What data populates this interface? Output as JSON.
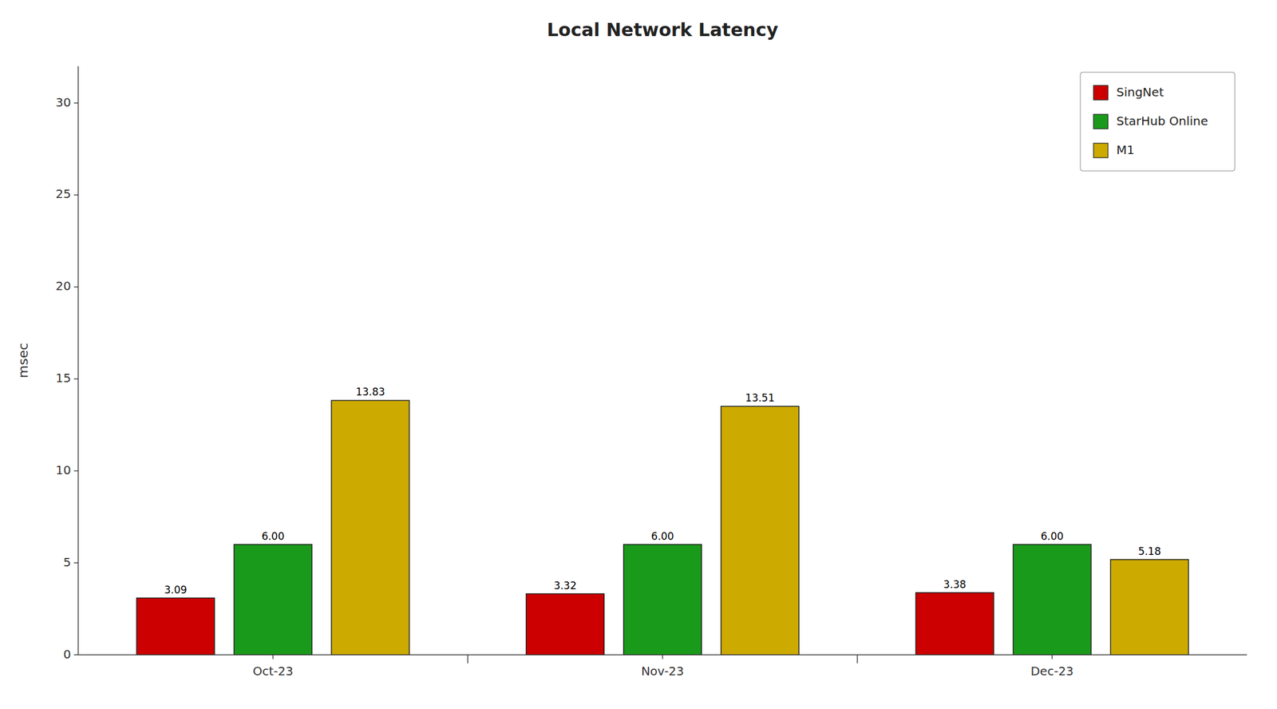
{
  "chart_data": {
    "type": "bar",
    "title": "Local Network Latency",
    "ylabel": "msec",
    "categories": [
      "Oct-23",
      "Nov-23",
      "Dec-23"
    ],
    "series": [
      {
        "name": "SingNet",
        "color": "#cc0000",
        "values": [
          3.09,
          3.32,
          3.38
        ]
      },
      {
        "name": "StarHub Online",
        "color": "#1a9a1a",
        "values": [
          6.0,
          6.0,
          6.0
        ],
        "value_labels": [
          "6.00",
          "6.00",
          "6.00"
        ]
      },
      {
        "name": "M1",
        "color": "#ccaa00",
        "values": [
          13.83,
          13.51,
          5.18
        ]
      }
    ],
    "ylim": [
      0,
      32
    ],
    "yticks": [
      0,
      5,
      10,
      15,
      20,
      25,
      30
    ],
    "grid": false,
    "legend": "upper right",
    "data_labels": true
  }
}
